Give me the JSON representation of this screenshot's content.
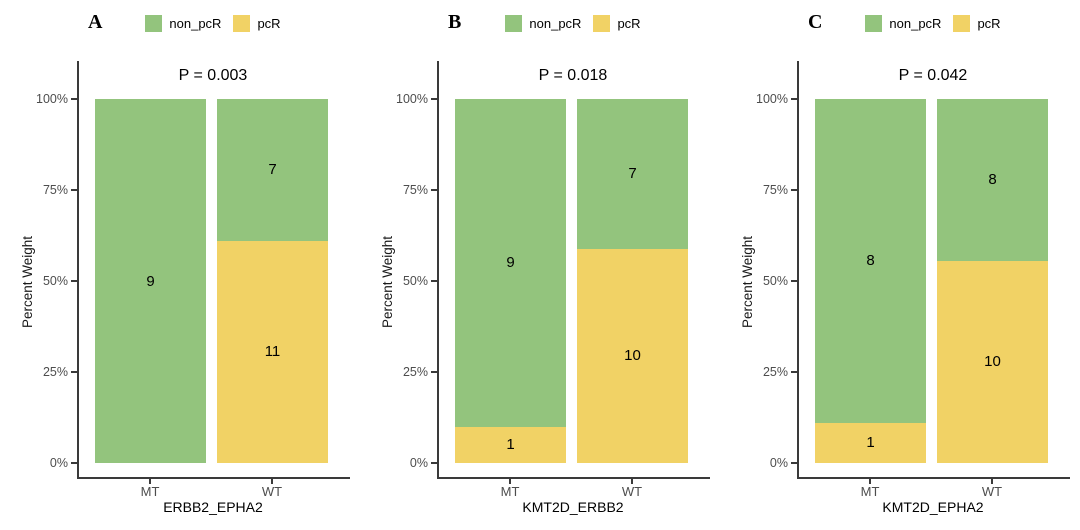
{
  "figure": {
    "ylabel": "Percent Weight",
    "yticks": [
      "0%",
      "25%",
      "50%",
      "75%",
      "100%"
    ],
    "legend": [
      {
        "label": "non_pcR",
        "color": "#93c47d"
      },
      {
        "label": "pcR",
        "color": "#f1d265"
      }
    ],
    "colors": {
      "non_pcR": "#93c47d",
      "pcR": "#f1d265",
      "axis_line": "#3a3a3a",
      "tick_text": "#4d4d4d"
    }
  },
  "chart_data": [
    {
      "type": "bar",
      "subtype": "stacked_percent",
      "panel_label": "A",
      "annotation": "P = 0.003",
      "title": "",
      "xlabel": "ERBB2_EPHA2",
      "ylabel": "Percent Weight",
      "categories": [
        "MT",
        "WT"
      ],
      "series": [
        {
          "name": "non_pcR",
          "color": "#93c47d",
          "values": [
            9,
            7
          ]
        },
        {
          "name": "pcR",
          "color": "#f1d265",
          "values": [
            0,
            11
          ]
        }
      ],
      "ylim": [
        0,
        100
      ],
      "yticks": [
        "0%",
        "25%",
        "50%",
        "75%",
        "100%"
      ],
      "grid": false,
      "legend_position": "top"
    },
    {
      "type": "bar",
      "subtype": "stacked_percent",
      "panel_label": "B",
      "annotation": "P = 0.018",
      "title": "",
      "xlabel": "KMT2D_ERBB2",
      "ylabel": "Percent Weight",
      "categories": [
        "MT",
        "WT"
      ],
      "series": [
        {
          "name": "non_pcR",
          "color": "#93c47d",
          "values": [
            9,
            7
          ]
        },
        {
          "name": "pcR",
          "color": "#f1d265",
          "values": [
            1,
            10
          ]
        }
      ],
      "ylim": [
        0,
        100
      ],
      "yticks": [
        "0%",
        "25%",
        "50%",
        "75%",
        "100%"
      ],
      "grid": false,
      "legend_position": "top"
    },
    {
      "type": "bar",
      "subtype": "stacked_percent",
      "panel_label": "C",
      "annotation": "P = 0.042",
      "title": "",
      "xlabel": "KMT2D_EPHA2",
      "ylabel": "Percent Weight",
      "categories": [
        "MT",
        "WT"
      ],
      "series": [
        {
          "name": "non_pcR",
          "color": "#93c47d",
          "values": [
            8,
            8
          ]
        },
        {
          "name": "pcR",
          "color": "#f1d265",
          "values": [
            1,
            10
          ]
        }
      ],
      "ylim": [
        0,
        100
      ],
      "yticks": [
        "0%",
        "25%",
        "50%",
        "75%",
        "100%"
      ],
      "grid": false,
      "legend_position": "top"
    }
  ]
}
